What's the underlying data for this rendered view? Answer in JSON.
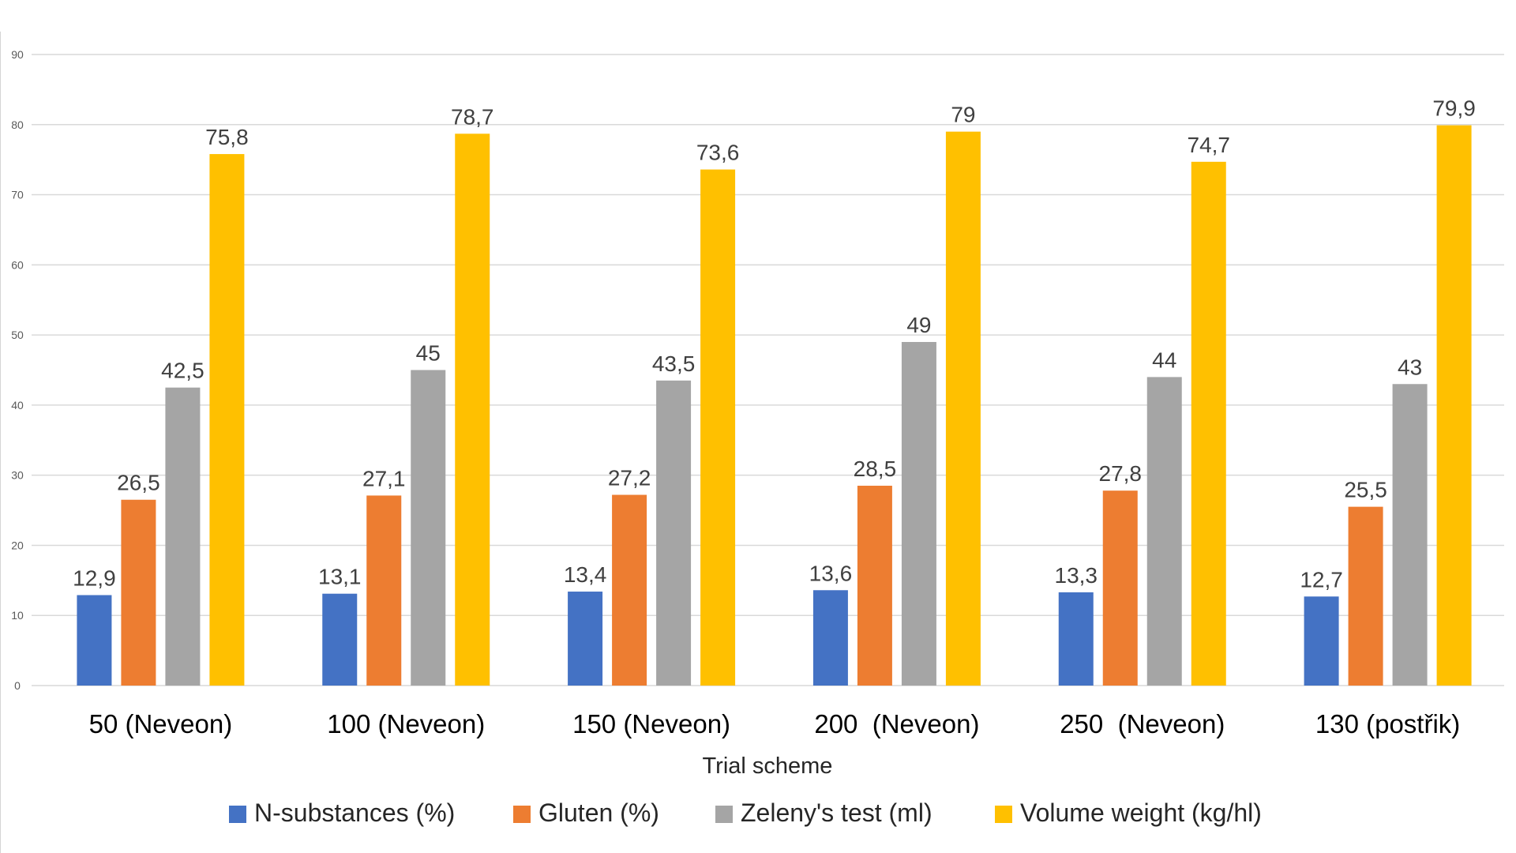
{
  "chart_data": {
    "type": "bar",
    "title": "",
    "xlabel": "Trial scheme",
    "ylabel": "",
    "ylim": [
      0,
      90
    ],
    "yticks": [
      "0",
      "10",
      "20",
      "30",
      "40",
      "50",
      "60",
      "70",
      "80",
      "90"
    ],
    "grid": true,
    "legend_position": "bottom",
    "categories": [
      "50 (Neveon)",
      "100 (Neveon)",
      "150 (Neveon)",
      "200  (Neveon)",
      "250  (Neveon)",
      "130 (postřik)"
    ],
    "series": [
      {
        "name": "N-substances (%)",
        "color": "#4472C4",
        "values": [
          12.9,
          13.1,
          13.4,
          13.6,
          13.3,
          12.7
        ],
        "labels": [
          "12,9",
          "13,1",
          "13,4",
          "13,6",
          "13,3",
          "12,7"
        ]
      },
      {
        "name": "Gluten (%)",
        "color": "#ED7D31",
        "values": [
          26.5,
          27.1,
          27.2,
          28.5,
          27.8,
          25.5
        ],
        "labels": [
          "26,5",
          "27,1",
          "27,2",
          "28,5",
          "27,8",
          "25,5"
        ]
      },
      {
        "name": "Zeleny's test (ml)",
        "color": "#A5A5A5",
        "values": [
          42.5,
          45,
          43.5,
          49,
          44,
          43
        ],
        "labels": [
          "42,5",
          "45",
          "43,5",
          "49",
          "44",
          "43"
        ]
      },
      {
        "name": "Volume weight (kg/hl)",
        "color": "#FFC000",
        "values": [
          75.8,
          78.7,
          73.6,
          79,
          74.7,
          79.9
        ],
        "labels": [
          "75,8",
          "78,7",
          "73,6",
          "79",
          "74,7",
          "79,9"
        ]
      }
    ],
    "colors": {
      "grid": "#d9d9d9",
      "axis_text": "#595959",
      "label_text": "#404040",
      "category_text": "#000000"
    }
  }
}
